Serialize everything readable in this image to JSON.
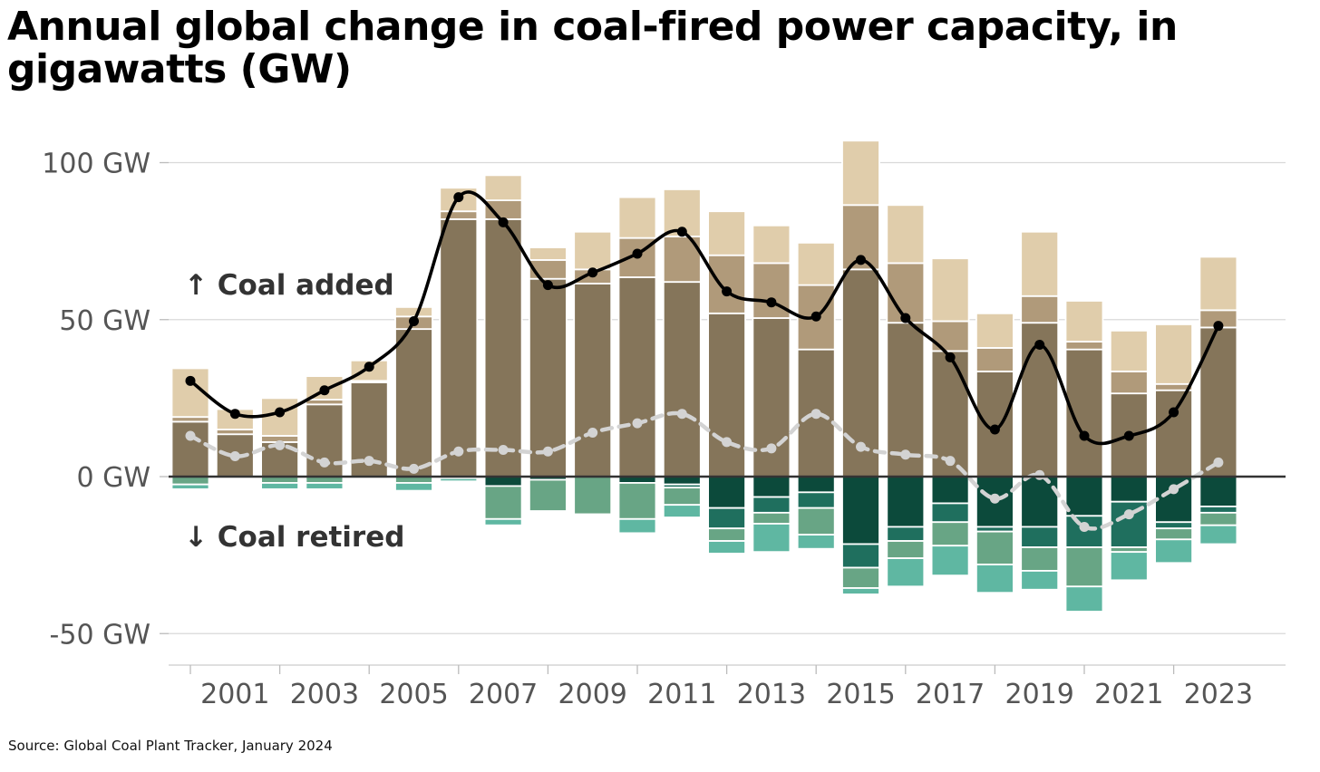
{
  "title": "Annual global change in coal-fired power capacity, in gigawatts (GW)",
  "source": "Source: Global Coal Plant Tracker, January 2024",
  "colors": {
    "added_dark": "#85755a",
    "added_mid": "#b09a7a",
    "added_light": "#e0cdab",
    "retired_dark": "#0c4a3b",
    "retired_mid": "#1f6f5e",
    "retired_green": "#68a585",
    "retired_light": "#5fb7a2",
    "net_line": "#000000",
    "dashed_line": "#d3d3d3",
    "axis": "#333333",
    "grid": "#d9d9d9",
    "tick_text": "#555555",
    "annotation_text": "#333333"
  },
  "chart_data": {
    "type": "bar",
    "stacked": true,
    "title": "Annual global change in coal-fired power capacity, in gigawatts (GW)",
    "xlabel": "",
    "ylabel": "",
    "ylim": [
      -60,
      107
    ],
    "grid": true,
    "yticks": [
      100,
      50,
      0,
      -50
    ],
    "ytick_labels": [
      "100 GW",
      "50 GW",
      "0 GW",
      "-50 GW"
    ],
    "x": [
      2000,
      2001,
      2002,
      2003,
      2004,
      2005,
      2006,
      2007,
      2008,
      2009,
      2010,
      2011,
      2012,
      2013,
      2014,
      2015,
      2016,
      2017,
      2018,
      2019,
      2020,
      2021,
      2022,
      2023
    ],
    "xtick_labels": [
      "2001",
      "2003",
      "2005",
      "2007",
      "2009",
      "2011",
      "2013",
      "2015",
      "2017",
      "2019",
      "2021",
      "2023"
    ],
    "annotations": [
      "↑ Coal added",
      "↓ Coal retired"
    ],
    "added_segments": [
      [
        17.5,
        1.5,
        15.5
      ],
      [
        13.5,
        1.5,
        6.5
      ],
      [
        11,
        2,
        12
      ],
      [
        23,
        1.5,
        7.5
      ],
      [
        30,
        0.5,
        6.5
      ],
      [
        47,
        4,
        3
      ],
      [
        82,
        2.5,
        7.5
      ],
      [
        82,
        6,
        8
      ],
      [
        63,
        6,
        4
      ],
      [
        61.5,
        4.5,
        12
      ],
      [
        63.5,
        12.5,
        13
      ],
      [
        62,
        14.5,
        15
      ],
      [
        52,
        18.5,
        14
      ],
      [
        50.5,
        17.5,
        12
      ],
      [
        40.5,
        20.5,
        13.5
      ],
      [
        66,
        20.5,
        20.5
      ],
      [
        49,
        19,
        18.5
      ],
      [
        40,
        9.5,
        20
      ],
      [
        33.5,
        7.5,
        11
      ],
      [
        49,
        8.5,
        20.5
      ],
      [
        40.5,
        2.5,
        13
      ],
      [
        26.5,
        7,
        13
      ],
      [
        27.5,
        2,
        19
      ],
      [
        47.5,
        5.5,
        17
      ]
    ],
    "retired_segments": [
      [
        0,
        0,
        2.5,
        1.5
      ],
      [
        0,
        0,
        0.5,
        0.5
      ],
      [
        0,
        0,
        2,
        2
      ],
      [
        0,
        0,
        2,
        2
      ],
      [
        0,
        0,
        0.5,
        0.5
      ],
      [
        0,
        0,
        2,
        2.5
      ],
      [
        0,
        0,
        0.5,
        1
      ],
      [
        3,
        0,
        10.5,
        2
      ],
      [
        1,
        0,
        10,
        0.5
      ],
      [
        0,
        0,
        12,
        0.5
      ],
      [
        2,
        0,
        11.5,
        4.5
      ],
      [
        2.5,
        1,
        5.5,
        4
      ],
      [
        10,
        6.5,
        4,
        4
      ],
      [
        6.5,
        5,
        3.5,
        9
      ],
      [
        5,
        5,
        8.5,
        4.5
      ],
      [
        21.5,
        7.5,
        6.5,
        2
      ],
      [
        16,
        4.5,
        5.5,
        9
      ],
      [
        8.5,
        6,
        7.5,
        9.5
      ],
      [
        16,
        1.5,
        10.5,
        9
      ],
      [
        16,
        6.5,
        7.5,
        6
      ],
      [
        12.5,
        10,
        12.5,
        8
      ],
      [
        8,
        14.5,
        1.5,
        9
      ],
      [
        14.5,
        2,
        3.5,
        7.5
      ],
      [
        9.5,
        2,
        4,
        6
      ]
    ],
    "series": [
      {
        "values": [
          30.5,
          20,
          20.5,
          27.5,
          35,
          49.5,
          89,
          81,
          61,
          65,
          71,
          78,
          59,
          55.5,
          51,
          69,
          50.5,
          38,
          15,
          42,
          13,
          13,
          20.5,
          48
        ]
      },
      {
        "values": [
          13,
          6.5,
          10,
          4.5,
          5,
          2.5,
          8,
          8.5,
          8,
          14,
          17,
          20,
          11,
          9,
          20,
          9.5,
          7,
          5,
          -7,
          0.5,
          -16,
          -12,
          -4,
          4.5
        ]
      }
    ]
  }
}
